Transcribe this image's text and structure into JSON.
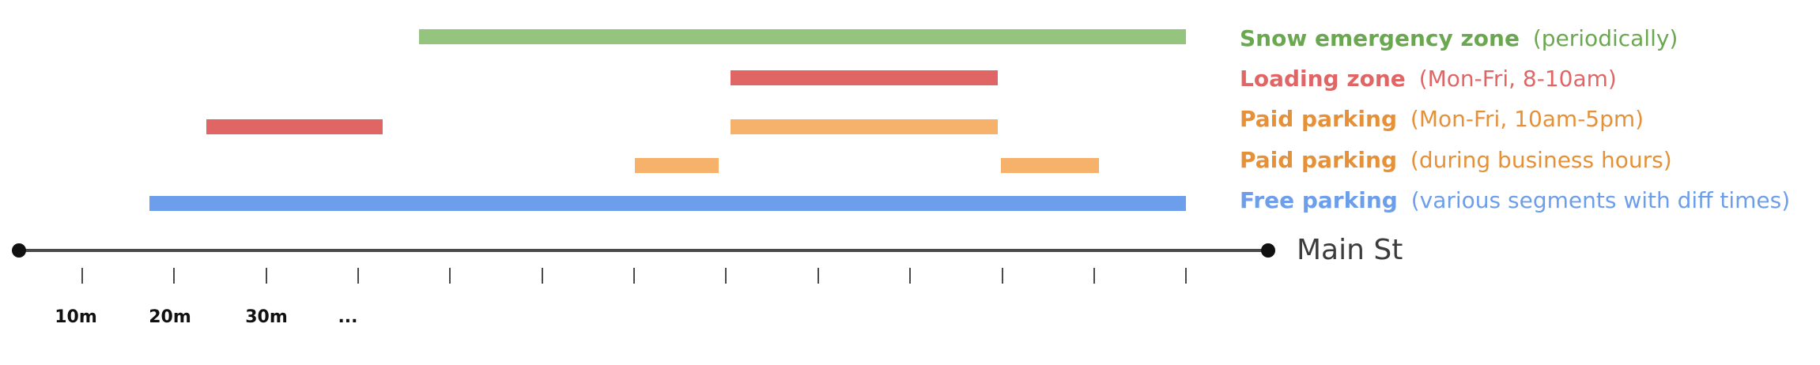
{
  "street": {
    "name": "Main St"
  },
  "colors": {
    "green": "#94c47d",
    "green_text": "#6aa84f",
    "red": "#e06666",
    "red_text": "#e06666",
    "orange": "#f6b26b",
    "orange_text": "#e69138",
    "blue": "#6d9eeb",
    "blue_text": "#6d9eeb",
    "axis": "#4a4a4a"
  },
  "axis": {
    "tick_labels": [
      "10m",
      "20m",
      "30m",
      "..."
    ]
  },
  "legend": [
    {
      "id": "snow",
      "bold": "Snow emergency zone",
      "detail": "(periodically)",
      "color_key": "green_text"
    },
    {
      "id": "loading",
      "bold": "Loading zone",
      "detail": "(Mon-Fri, 8-10am)",
      "color_key": "red_text"
    },
    {
      "id": "paid-weekday",
      "bold": "Paid parking",
      "detail": "(Mon-Fri, 10am-5pm)",
      "color_key": "orange_text"
    },
    {
      "id": "paid-business",
      "bold": "Paid parking",
      "detail": "(during business hours)",
      "color_key": "orange_text"
    },
    {
      "id": "free",
      "bold": "Free parking",
      "detail": "(various segments with diff times)",
      "color_key": "blue_text"
    }
  ]
}
